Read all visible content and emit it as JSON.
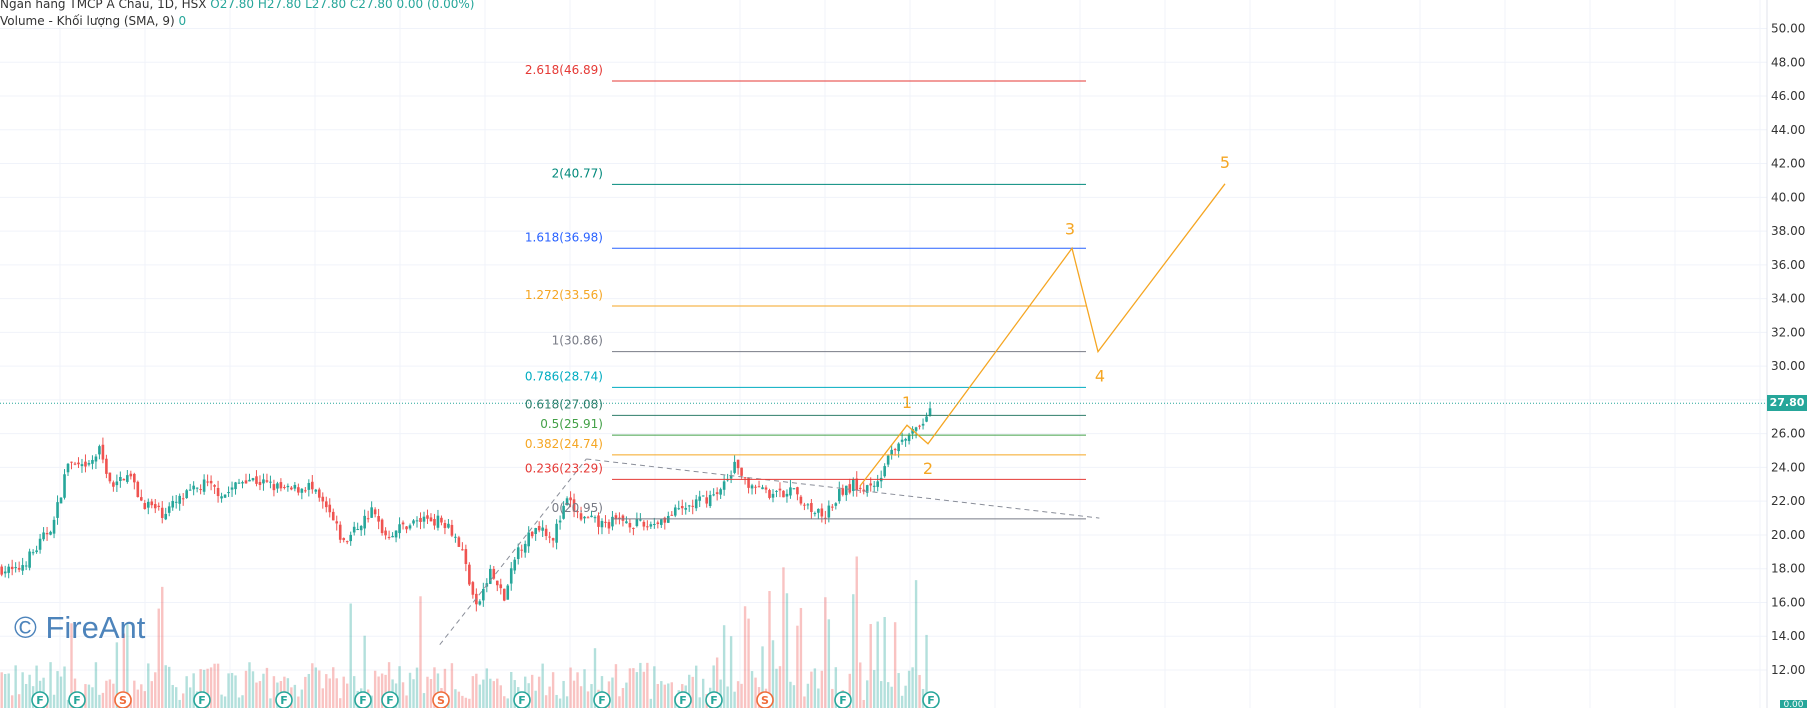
{
  "header": {
    "symbol_line": "Ngân hàng TMCP Á Châu, 1D, HSX",
    "ohlc": "O27.80 H27.80 L27.80 C27.80 0.00 (0.00%)",
    "volume_label": "Volume - Khối lượng (SMA, 9)",
    "volume_value": "0"
  },
  "watermark": "© FireAnt",
  "colors": {
    "up": "#26a69a",
    "down": "#ef5350",
    "wave": "#f5a623",
    "price_tag": "#26a69a"
  },
  "chart_data": {
    "type": "candlestick",
    "title": "Ngân hàng TMCP Á Châu, 1D, HSX",
    "last_price": 27.8,
    "last_price_label": "27.80",
    "y_axis": {
      "ylim": [
        10.5,
        51.2
      ],
      "ticks": [
        12,
        14,
        16,
        18,
        20,
        22,
        24,
        26,
        28,
        30,
        32,
        34,
        36,
        38,
        40,
        42,
        44,
        46,
        48,
        50
      ],
      "tick_labels": [
        "12.00",
        "14.00",
        "16.00",
        "18.00",
        "20.00",
        "22.00",
        "24.00",
        "26.00",
        "28.00",
        "30.00",
        "32.00",
        "34.00",
        "36.00",
        "38.00",
        "40.00",
        "42.00",
        "44.00",
        "46.00",
        "48.00",
        "50.00"
      ],
      "bottom_label": "0.00"
    },
    "grid": true,
    "fibonacci_levels": [
      {
        "ratio": "0",
        "price": 20.95,
        "label": "0(20.95)",
        "color": "#787b86"
      },
      {
        "ratio": "0.236",
        "price": 23.29,
        "label": "0.236(23.29)",
        "color": "#e53935"
      },
      {
        "ratio": "0.382",
        "price": 24.74,
        "label": "0.382(24.74)",
        "color": "#f5a623"
      },
      {
        "ratio": "0.5",
        "price": 25.91,
        "label": "0.5(25.91)",
        "color": "#43a047"
      },
      {
        "ratio": "0.618",
        "price": 27.08,
        "label": "0.618(27.08)",
        "color": "#2e7d6a"
      },
      {
        "ratio": "0.786",
        "price": 28.74,
        "label": "0.786(28.74)",
        "color": "#00acc1"
      },
      {
        "ratio": "1",
        "price": 30.86,
        "label": "1(30.86)",
        "color": "#787b86"
      },
      {
        "ratio": "1.272",
        "price": 33.56,
        "label": "1.272(33.56)",
        "color": "#f5a623"
      },
      {
        "ratio": "1.618",
        "price": 36.98,
        "label": "1.618(36.98)",
        "color": "#2962ff"
      },
      {
        "ratio": "2",
        "price": 40.77,
        "label": "2(40.77)",
        "color": "#00897b"
      },
      {
        "ratio": "2.618",
        "price": 46.89,
        "label": "2.618(46.89)",
        "color": "#e53935"
      }
    ],
    "elliott_wave": {
      "labels": [
        "1",
        "2",
        "3",
        "4",
        "5"
      ],
      "points": [
        {
          "label": "",
          "price": 22.9
        },
        {
          "label": "1",
          "price": 26.5
        },
        {
          "label": "2",
          "price": 25.4
        },
        {
          "label": "3",
          "price": 36.98
        },
        {
          "label": "4",
          "price": 30.86
        },
        {
          "label": "5",
          "price": 40.8
        }
      ]
    },
    "price_path": [
      {
        "t": 0,
        "p": 18.0
      },
      {
        "t": 4,
        "p": 17.8
      },
      {
        "t": 10,
        "p": 19.2
      },
      {
        "t": 15,
        "p": 20.8
      },
      {
        "t": 19,
        "p": 24.3
      },
      {
        "t": 24,
        "p": 23.8
      },
      {
        "t": 28,
        "p": 25.0
      },
      {
        "t": 32,
        "p": 22.7
      },
      {
        "t": 36,
        "p": 23.8
      },
      {
        "t": 40,
        "p": 22.0
      },
      {
        "t": 46,
        "p": 21.3
      },
      {
        "t": 52,
        "p": 22.2
      },
      {
        "t": 58,
        "p": 23.0
      },
      {
        "t": 64,
        "p": 22.4
      },
      {
        "t": 70,
        "p": 23.4
      },
      {
        "t": 76,
        "p": 23.0
      },
      {
        "t": 82,
        "p": 22.6
      },
      {
        "t": 88,
        "p": 22.9
      },
      {
        "t": 94,
        "p": 21.2
      },
      {
        "t": 98,
        "p": 19.5
      },
      {
        "t": 102,
        "p": 20.5
      },
      {
        "t": 106,
        "p": 21.4
      },
      {
        "t": 110,
        "p": 20.0
      },
      {
        "t": 116,
        "p": 20.6
      },
      {
        "t": 122,
        "p": 21.0
      },
      {
        "t": 128,
        "p": 20.7
      },
      {
        "t": 132,
        "p": 19.0
      },
      {
        "t": 136,
        "p": 15.6
      },
      {
        "t": 140,
        "p": 17.8
      },
      {
        "t": 144,
        "p": 16.2
      },
      {
        "t": 148,
        "p": 19.2
      },
      {
        "t": 154,
        "p": 20.6
      },
      {
        "t": 158,
        "p": 19.9
      },
      {
        "t": 162,
        "p": 22.0
      },
      {
        "t": 166,
        "p": 21.0
      },
      {
        "t": 172,
        "p": 20.6
      },
      {
        "t": 178,
        "p": 20.9
      },
      {
        "t": 184,
        "p": 20.5
      },
      {
        "t": 190,
        "p": 21.0
      },
      {
        "t": 196,
        "p": 21.6
      },
      {
        "t": 202,
        "p": 22.2
      },
      {
        "t": 206,
        "p": 22.5
      },
      {
        "t": 210,
        "p": 24.1
      },
      {
        "t": 214,
        "p": 23.0
      },
      {
        "t": 220,
        "p": 22.3
      },
      {
        "t": 226,
        "p": 22.6
      },
      {
        "t": 232,
        "p": 21.6
      },
      {
        "t": 236,
        "p": 21.2
      },
      {
        "t": 240,
        "p": 22.4
      },
      {
        "t": 244,
        "p": 23.0
      },
      {
        "t": 248,
        "p": 22.8
      },
      {
        "t": 252,
        "p": 23.6
      },
      {
        "t": 256,
        "p": 25.2
      },
      {
        "t": 260,
        "p": 25.9
      },
      {
        "t": 264,
        "p": 26.3
      },
      {
        "t": 266,
        "p": 27.8
      }
    ],
    "dashed_trendlines": [
      {
        "from": {
          "t": 126,
          "p": 13.5
        },
        "to": {
          "t": 168,
          "p": 24.5
        }
      },
      {
        "from": {
          "t": 168,
          "p": 24.5
        },
        "to": {
          "t": 315,
          "p": 21.0
        }
      }
    ],
    "event_markers": [
      "F",
      "F",
      "S",
      "F",
      "F",
      "F",
      "F",
      "S",
      "F",
      "F",
      "F",
      "F",
      "S",
      "F",
      "F",
      "F"
    ]
  }
}
